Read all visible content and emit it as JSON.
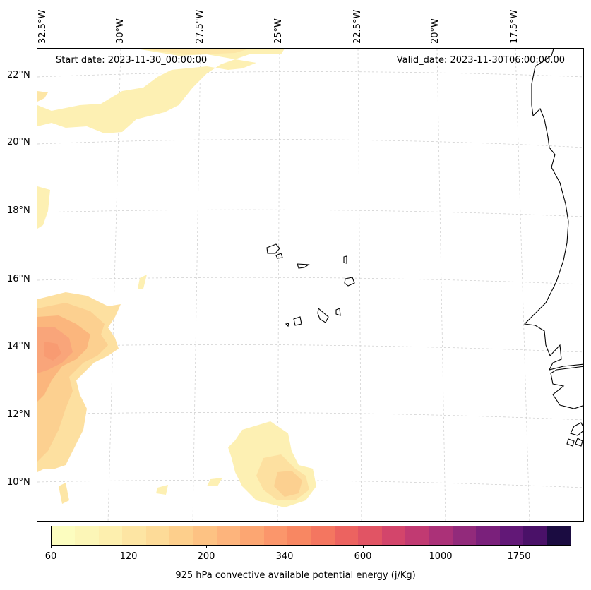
{
  "map": {
    "start_date": "Start date: 2023-11-30_00:00:00",
    "valid_date": "Valid_date: 2023-11-30T06:00:00.00",
    "lat_labels": [
      "22°N",
      "20°N",
      "18°N",
      "16°N",
      "14°N",
      "12°N",
      "10°N"
    ],
    "lon_labels": [
      "32.5°W",
      "30°W",
      "27.5°W",
      "25°W",
      "22.5°W",
      "20°W",
      "17.5°W"
    ],
    "colors": {
      "fill_low": "#fdf3b8",
      "fill_mid": "#fdd99a",
      "fill_high": "#f9a57a",
      "coast": "#000000",
      "grid": "#cccccc"
    }
  },
  "colorbar": {
    "title": "925 hPa convective available potential energy (j/Kg)",
    "tick_labels": [
      "60",
      "120",
      "200",
      "340",
      "600",
      "1000",
      "1750"
    ],
    "colors": [
      "#fcfdbf",
      "#fcf6b7",
      "#fdefae",
      "#fde5a3",
      "#fddb98",
      "#fdcf8c",
      "#fdc283",
      "#fdb47c",
      "#fca672",
      "#fb966b",
      "#f88762",
      "#f47660",
      "#ec6360",
      "#e15464",
      "#d3456b",
      "#c13a72",
      "#ab3178",
      "#922a7b",
      "#7a207b",
      "#621877",
      "#4a1168",
      "#1b0c41"
    ]
  }
}
